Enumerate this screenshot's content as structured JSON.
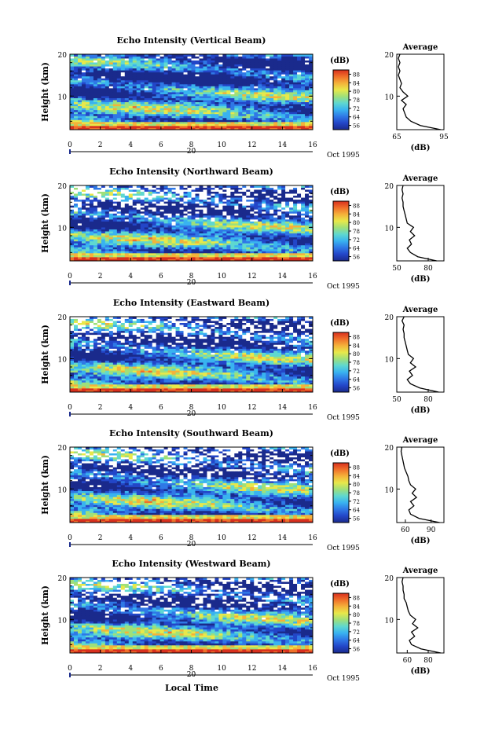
{
  "figure": {
    "xlabel": "Local Time",
    "date_label": "Oct 1995",
    "date_day": "20",
    "ylabel": "Height (km)",
    "colorbar_unit": "(dB)",
    "average_title": "Average",
    "average_xlabel": "(dB)"
  },
  "colorbar": {
    "ticks": [
      "56",
      "64",
      "72",
      "78",
      "80",
      "84",
      "88"
    ],
    "colors": [
      "#1a2a8c",
      "#2346c8",
      "#2f78e6",
      "#39b3f0",
      "#5fd8d0",
      "#9fe07a",
      "#e8e84a",
      "#f4b23a",
      "#f0702a",
      "#d8301e"
    ]
  },
  "chart_data": [
    {
      "type": "heatmap",
      "title": "Echo Intensity (Vertical Beam)",
      "xlabel": "Local Time",
      "ylabel": "Height (km)",
      "xlim": [
        0,
        16
      ],
      "ylim": [
        2,
        20
      ],
      "x_ticks": [
        "0",
        "2",
        "4",
        "6",
        "8",
        "10",
        "12",
        "14",
        "16"
      ],
      "y_ticks": [
        "20",
        "10"
      ],
      "colorbar_range_db": [
        56,
        88
      ],
      "average_profile": {
        "xlim": [
          65,
          95
        ],
        "x_ticks": [
          "65",
          "95"
        ],
        "y_ticks": [
          "20",
          "10"
        ],
        "heights_km": [
          2,
          3,
          4,
          5,
          6,
          7,
          8,
          9,
          10,
          11,
          12,
          13,
          14,
          15,
          16,
          17,
          18,
          19,
          20
        ],
        "db": [
          93,
          80,
          74,
          71,
          70,
          69,
          71,
          68,
          72,
          69,
          67,
          68,
          67,
          66,
          67,
          66,
          67,
          66,
          67
        ]
      }
    },
    {
      "type": "heatmap",
      "title": "Echo Intensity (Northward Beam)",
      "xlabel": "Local Time",
      "ylabel": "Height (km)",
      "xlim": [
        0,
        16
      ],
      "ylim": [
        2,
        20
      ],
      "x_ticks": [
        "0",
        "2",
        "4",
        "6",
        "8",
        "10",
        "12",
        "14",
        "16"
      ],
      "y_ticks": [
        "20",
        "10"
      ],
      "colorbar_range_db": [
        56,
        88
      ],
      "average_profile": {
        "xlim": [
          50,
          95
        ],
        "x_ticks": [
          "50",
          "80"
        ],
        "y_ticks": [
          "20",
          "10"
        ],
        "heights_km": [
          2,
          3,
          4,
          5,
          6,
          7,
          8,
          9,
          10,
          11,
          12,
          13,
          14,
          15,
          16,
          17,
          18,
          19,
          20
        ],
        "db": [
          88,
          70,
          63,
          60,
          64,
          62,
          67,
          63,
          66,
          60,
          59,
          58,
          57,
          56,
          56,
          55,
          56,
          55,
          56
        ]
      }
    },
    {
      "type": "heatmap",
      "title": "Echo Intensity (Eastward Beam)",
      "xlabel": "Local Time",
      "ylabel": "Height (km)",
      "xlim": [
        0,
        16
      ],
      "ylim": [
        2,
        20
      ],
      "x_ticks": [
        "0",
        "2",
        "4",
        "6",
        "8",
        "10",
        "12",
        "14",
        "16"
      ],
      "y_ticks": [
        "20",
        "10"
      ],
      "colorbar_range_db": [
        56,
        88
      ],
      "average_profile": {
        "xlim": [
          50,
          95
        ],
        "x_ticks": [
          "50",
          "80"
        ],
        "y_ticks": [
          "20",
          "10"
        ],
        "heights_km": [
          2,
          3,
          4,
          5,
          6,
          7,
          8,
          9,
          10,
          11,
          12,
          13,
          14,
          15,
          16,
          17,
          18,
          19,
          20
        ],
        "db": [
          90,
          72,
          63,
          60,
          65,
          62,
          68,
          63,
          66,
          61,
          60,
          59,
          58,
          57,
          57,
          56,
          57,
          55,
          57
        ]
      }
    },
    {
      "type": "heatmap",
      "title": "Echo Intensity (Southward Beam)",
      "xlabel": "Local Time",
      "ylabel": "Height (km)",
      "xlim": [
        0,
        16
      ],
      "ylim": [
        2,
        20
      ],
      "x_ticks": [
        "0",
        "2",
        "4",
        "6",
        "8",
        "10",
        "12",
        "14",
        "16"
      ],
      "y_ticks": [
        "20",
        "10"
      ],
      "colorbar_range_db": [
        56,
        88
      ],
      "average_profile": {
        "xlim": [
          50,
          105
        ],
        "x_ticks": [
          "60",
          "90"
        ],
        "y_ticks": [
          "20",
          "10"
        ],
        "heights_km": [
          2,
          3,
          4,
          5,
          6,
          7,
          8,
          9,
          10,
          11,
          12,
          13,
          14,
          15,
          16,
          17,
          18,
          19,
          20
        ],
        "db": [
          100,
          76,
          66,
          64,
          70,
          66,
          73,
          68,
          72,
          66,
          64,
          63,
          61,
          59,
          58,
          57,
          56,
          55,
          56
        ]
      }
    },
    {
      "type": "heatmap",
      "title": "Echo Intensity (Westward Beam)",
      "xlabel": "Local Time",
      "ylabel": "Height (km)",
      "xlim": [
        0,
        16
      ],
      "ylim": [
        2,
        20
      ],
      "x_ticks": [
        "0",
        "2",
        "4",
        "6",
        "8",
        "10",
        "12",
        "14",
        "16"
      ],
      "y_ticks": [
        "20",
        "10"
      ],
      "colorbar_range_db": [
        56,
        88
      ],
      "average_profile": {
        "xlim": [
          50,
          95
        ],
        "x_ticks": [
          "60",
          "80"
        ],
        "y_ticks": [
          "20",
          "10"
        ],
        "heights_km": [
          2,
          3,
          4,
          5,
          6,
          7,
          8,
          9,
          10,
          11,
          12,
          13,
          14,
          15,
          16,
          17,
          18,
          19,
          20
        ],
        "db": [
          92,
          73,
          64,
          62,
          67,
          64,
          70,
          65,
          68,
          63,
          61,
          60,
          59,
          57,
          57,
          56,
          56,
          55,
          56
        ]
      }
    }
  ]
}
